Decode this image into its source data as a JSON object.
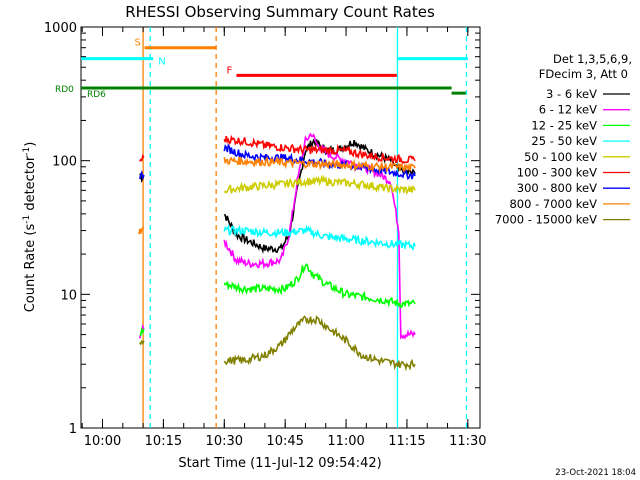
{
  "chart_data": {
    "type": "line",
    "title": "RHESSI Observing Summary Count Rates",
    "xlabel": "Start Time (11-Jul-12 09:54:42)",
    "ylabel_main": "Count Rate (s",
    "ylabel_sup1": "-1",
    "ylabel_mid": " detector",
    "ylabel_sup2": "-1",
    "ylabel_end": ")",
    "yscale": "log",
    "ylim": [
      1,
      1000
    ],
    "xlim": [
      "09:54:42",
      "11:33:00"
    ],
    "x_ticks": [
      "10:00",
      "10:15",
      "10:30",
      "10:45",
      "11:00",
      "11:15",
      "11:30"
    ],
    "y_ticks": [
      {
        "value": 1,
        "label": "1"
      },
      {
        "value": 10,
        "label": "10"
      },
      {
        "value": 100,
        "label": "100"
      },
      {
        "value": 1000,
        "label": "1000"
      }
    ],
    "legend_header": [
      "Det 1,3,5,6,9,",
      "FDecim 3, Att 0"
    ],
    "series": [
      {
        "name": "3 - 6 keV",
        "color": "#000000",
        "segments": [
          [
            [
              "10:09:10",
              80
            ],
            [
              "10:09:40",
              75
            ],
            [
              "10:10:10",
              78
            ]
          ],
          [
            [
              "10:30:00",
              40
            ],
            [
              "10:33:00",
              28
            ],
            [
              "10:36:00",
              25
            ],
            [
              "10:40:00",
              22
            ],
            [
              "10:44:00",
              22
            ],
            [
              "10:46:00",
              28
            ],
            [
              "10:48:00",
              60
            ],
            [
              "10:50:00",
              120
            ],
            [
              "10:52:00",
              140
            ],
            [
              "10:55:00",
              120
            ],
            [
              "10:58:00",
              120
            ],
            [
              "11:02:00",
              140
            ],
            [
              "11:05:00",
              120
            ],
            [
              "11:08:00",
              110
            ],
            [
              "11:11:00",
              100
            ],
            [
              "11:13:00",
              85
            ],
            [
              "11:17:00",
              80
            ]
          ]
        ]
      },
      {
        "name": "6 - 12 keV",
        "color": "#ff00ff",
        "segments": [
          [
            [
              "10:09:10",
              5
            ],
            [
              "10:10:10",
              5.5
            ]
          ],
          [
            [
              "10:30:00",
              25
            ],
            [
              "10:33:00",
              18
            ],
            [
              "10:36:00",
              17
            ],
            [
              "10:40:00",
              17
            ],
            [
              "10:44:00",
              18
            ],
            [
              "10:46:00",
              28
            ],
            [
              "10:48:00",
              70
            ],
            [
              "10:50:00",
              140
            ],
            [
              "10:51:30",
              160
            ],
            [
              "10:53:00",
              130
            ],
            [
              "10:56:00",
              110
            ],
            [
              "11:00:00",
              100
            ],
            [
              "11:04:00",
              90
            ],
            [
              "11:08:00",
              80
            ],
            [
              "11:11:00",
              70
            ],
            [
              "11:13:00",
              30
            ],
            [
              "11:13:30",
              5
            ],
            [
              "11:17:00",
              5
            ]
          ]
        ]
      },
      {
        "name": "12 - 25 keV",
        "color": "#00ff00",
        "segments": [
          [
            [
              "10:09:10",
              5
            ],
            [
              "10:10:10",
              5.5
            ]
          ],
          [
            [
              "10:30:00",
              12
            ],
            [
              "10:35:00",
              11
            ],
            [
              "10:40:00",
              11
            ],
            [
              "10:45:00",
              11
            ],
            [
              "10:48:00",
              13
            ],
            [
              "10:50:00",
              17
            ],
            [
              "10:52:00",
              14
            ],
            [
              "10:55:00",
              12
            ],
            [
              "11:00:00",
              10
            ],
            [
              "11:05:00",
              9.5
            ],
            [
              "11:10:00",
              9
            ],
            [
              "11:13:00",
              8.5
            ],
            [
              "11:17:00",
              8.5
            ]
          ]
        ]
      },
      {
        "name": "25 - 50 keV",
        "color": "#00ffff",
        "segments": [
          [
            [
              "10:30:00",
              30
            ],
            [
              "10:35:00",
              30
            ],
            [
              "10:40:00",
              29
            ],
            [
              "10:45:00",
              29
            ],
            [
              "10:50:00",
              30
            ],
            [
              "10:55:00",
              27
            ],
            [
              "11:00:00",
              26
            ],
            [
              "11:05:00",
              25
            ],
            [
              "11:10:00",
              24
            ],
            [
              "11:17:00",
              23
            ]
          ]
        ]
      },
      {
        "name": "50 - 100 keV",
        "color": "#cccc00",
        "segments": [
          [
            [
              "10:30:00",
              60
            ],
            [
              "10:35:00",
              63
            ],
            [
              "10:40:00",
              65
            ],
            [
              "10:45:00",
              67
            ],
            [
              "10:50:00",
              70
            ],
            [
              "10:55:00",
              70
            ],
            [
              "11:00:00",
              68
            ],
            [
              "11:05:00",
              66
            ],
            [
              "11:10:00",
              62
            ],
            [
              "11:17:00",
              60
            ]
          ]
        ]
      },
      {
        "name": "100 - 300 keV",
        "color": "#ff0000",
        "segments": [
          [
            [
              "10:09:10",
              100
            ],
            [
              "10:10:10",
              105
            ]
          ],
          [
            [
              "10:30:00",
              145
            ],
            [
              "10:35:00",
              140
            ],
            [
              "10:40:00",
              130
            ],
            [
              "10:45:00",
              125
            ],
            [
              "10:50:00",
              120
            ],
            [
              "10:55:00",
              120
            ],
            [
              "11:00:00",
              118
            ],
            [
              "11:05:00",
              110
            ],
            [
              "11:10:00",
              105
            ],
            [
              "11:17:00",
              100
            ]
          ]
        ]
      },
      {
        "name": "300 - 800 keV",
        "color": "#0000ff",
        "segments": [
          [
            [
              "10:09:10",
              78
            ],
            [
              "10:10:10",
              78
            ]
          ],
          [
            [
              "10:30:00",
              125
            ],
            [
              "10:35:00",
              110
            ],
            [
              "10:40:00",
              105
            ],
            [
              "10:45:00",
              105
            ],
            [
              "10:50:00",
              100
            ],
            [
              "10:55:00",
              95
            ],
            [
              "11:00:00",
              92
            ],
            [
              "11:05:00",
              88
            ],
            [
              "11:10:00",
              83
            ],
            [
              "11:17:00",
              77
            ]
          ]
        ]
      },
      {
        "name": "800 - 7000 keV",
        "color": "#ff8000",
        "segments": [
          [
            [
              "10:09:00",
              30
            ],
            [
              "10:09:40",
              30
            ],
            [
              "10:10:10",
              32
            ]
          ],
          [
            [
              "10:30:00",
              100
            ],
            [
              "10:40:00",
              98
            ],
            [
              "10:50:00",
              95
            ],
            [
              "11:00:00",
              93
            ],
            [
              "11:10:00",
              90
            ],
            [
              "11:17:00",
              88
            ]
          ]
        ]
      },
      {
        "name": "7000 - 15000 keV",
        "color": "#808000",
        "segments": [
          [
            [
              "10:09:10",
              4.5
            ],
            [
              "10:10:10",
              4.5
            ]
          ],
          [
            [
              "10:30:00",
              3.2
            ],
            [
              "10:35:00",
              3.2
            ],
            [
              "10:40:00",
              3.5
            ],
            [
              "10:44:00",
              4.2
            ],
            [
              "10:47:00",
              5.5
            ],
            [
              "10:50:00",
              6.5
            ],
            [
              "10:53:00",
              6.5
            ],
            [
              "10:56:00",
              5.5
            ],
            [
              "11:00:00",
              4.5
            ],
            [
              "11:04:00",
              3.5
            ],
            [
              "11:08:00",
              3.2
            ],
            [
              "11:13:00",
              3.0
            ],
            [
              "11:17:00",
              3.0
            ]
          ]
        ]
      }
    ],
    "status_bars": [
      {
        "label": "S",
        "color": "#ff8000",
        "from": "10:10:20",
        "to": "10:28:00",
        "value": 700,
        "label_side": "left"
      },
      {
        "label": "N",
        "color": "#00ffff",
        "from": "09:54:42",
        "to": "10:12:30",
        "value": 580,
        "label_side": "right"
      },
      {
        "label": "N",
        "color": "#00ffff",
        "from": "11:12:30",
        "to": "11:30:00",
        "value": 580,
        "label_side": "none"
      },
      {
        "label": "F",
        "color": "#ff0000",
        "from": "10:33:00",
        "to": "11:12:30",
        "value": 435,
        "label_side": "left"
      },
      {
        "label": "RD0",
        "color": "#008000",
        "from": "09:54:42",
        "to": "11:26:00",
        "value": 350,
        "label_side": "outside-left"
      },
      {
        "label": "RD6",
        "color": "#008000",
        "from": "11:26:00",
        "to": "11:29:30",
        "value": 320,
        "label_side": "none"
      }
    ],
    "rd6_label": "RD6",
    "vlines": [
      {
        "t": "10:10:00",
        "color": "#ff8000",
        "style": "solid"
      },
      {
        "t": "10:11:45",
        "color": "#00ffff",
        "style": "dashed"
      },
      {
        "t": "10:28:00",
        "color": "#ff8000",
        "style": "dashed"
      },
      {
        "t": "11:12:40",
        "color": "#00ffff",
        "style": "solid"
      },
      {
        "t": "11:29:40",
        "color": "#00ffff",
        "style": "dashed"
      }
    ],
    "footer_date": "23-Oct-2021 18:04"
  }
}
